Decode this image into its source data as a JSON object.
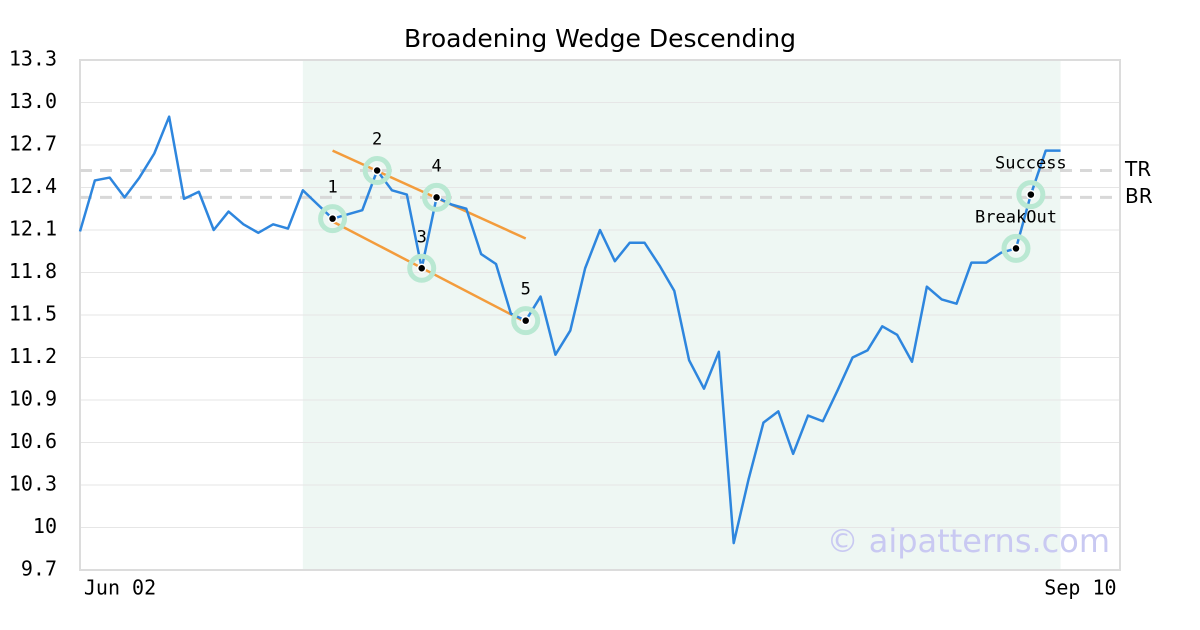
{
  "chart_data": {
    "type": "line",
    "title": "Broadening Wedge Descending",
    "color": "#2e86de",
    "categories": [
      "Jun 02",
      null,
      null,
      null,
      null,
      null,
      null,
      null,
      null,
      null,
      null,
      null,
      null,
      null,
      null,
      null,
      null,
      null,
      null,
      null,
      null,
      null,
      null,
      null,
      null,
      null,
      null,
      null,
      null,
      null,
      null,
      null,
      null,
      null,
      null,
      null,
      null,
      null,
      null,
      null,
      null,
      null,
      null,
      null,
      null,
      null,
      null,
      null,
      null,
      null,
      null,
      null,
      null,
      null,
      null,
      null,
      null,
      null,
      null,
      null,
      null,
      null,
      null,
      null,
      null,
      null,
      null,
      "Sep 10",
      null,
      null,
      null
    ],
    "values": [
      12.09,
      12.45,
      12.47,
      12.33,
      12.47,
      12.64,
      12.9,
      12.32,
      12.37,
      12.1,
      12.23,
      12.14,
      12.08,
      12.14,
      12.11,
      12.38,
      12.28,
      12.18,
      12.21,
      12.24,
      12.52,
      12.38,
      12.35,
      11.83,
      12.33,
      12.28,
      12.25,
      11.93,
      11.86,
      11.51,
      11.46,
      11.63,
      11.22,
      11.39,
      11.83,
      12.1,
      11.88,
      12.01,
      12.01,
      11.85,
      11.67,
      11.18,
      10.98,
      11.24,
      9.89,
      10.34,
      10.74,
      10.82,
      10.52,
      10.79,
      10.75,
      10.97,
      11.2,
      11.25,
      11.42,
      11.36,
      11.17,
      11.7,
      11.61,
      11.58,
      11.87,
      11.87,
      11.94,
      11.97,
      12.35,
      12.66,
      12.66,
      null,
      null,
      null,
      null
    ],
    "ylim": [
      9.7,
      13.3
    ],
    "yticks": [
      9.7,
      10.0,
      10.3,
      10.6,
      10.9,
      11.2,
      11.5,
      11.8,
      12.1,
      12.4,
      12.7,
      {
        "value": 13,
        "label": "13.0"
      },
      13.3
    ],
    "grid": true,
    "highlight": [
      15,
      66
    ],
    "highlight_color": "#eef7f3",
    "hlines": [
      {
        "label": "TR",
        "value": 12.52
      },
      {
        "label": "BR",
        "value": 12.33
      }
    ],
    "trendline_color": "#f39c3c",
    "trendlines": [
      {
        "x": [
          17,
          30
        ],
        "values": [
          12.66,
          12.04
        ]
      },
      {
        "x": [
          17,
          30
        ],
        "values": [
          12.16,
          11.45
        ]
      }
    ],
    "marker_color": "#b9e8d2",
    "points": [
      {
        "label": "1",
        "x": 17,
        "value": 12.18
      },
      {
        "label": "2",
        "x": 20,
        "value": 12.52
      },
      {
        "label": "3",
        "x": 23,
        "value": 11.83
      },
      {
        "label": "4",
        "x": 24,
        "value": 12.33
      },
      {
        "label": "5",
        "x": 30,
        "value": 11.46
      },
      {
        "label": "BreakOut",
        "x": 63,
        "value": 11.97
      },
      {
        "label": "Success",
        "x": 64,
        "value": 12.35
      }
    ],
    "watermark": "© aipatterns.com"
  }
}
